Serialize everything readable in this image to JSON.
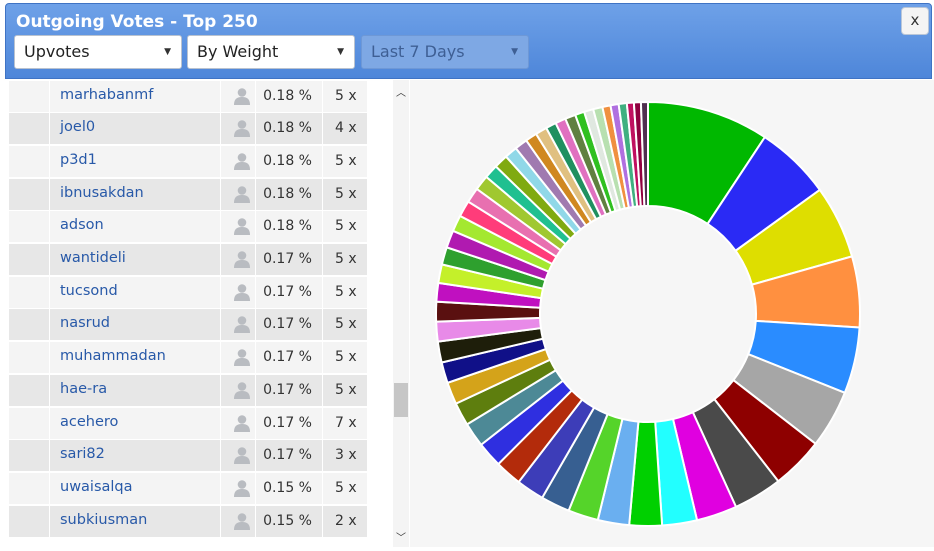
{
  "window": {
    "title": "Outgoing Votes - Top 250",
    "close_label": "x"
  },
  "filters": {
    "type": {
      "selected": "Upvotes"
    },
    "sort": {
      "selected": "By Weight"
    },
    "period": {
      "selected": "Last 7 Days",
      "disabled": true
    }
  },
  "icons": {
    "avatar": "user-silhouette-icon",
    "scroll_up": "chevron-up-icon",
    "scroll_down": "chevron-down-icon",
    "dropdown": "caret-down-icon"
  },
  "rows": [
    {
      "name": "marhabanmf",
      "pct": "0.18 %",
      "count": "5 x"
    },
    {
      "name": "joel0",
      "pct": "0.18 %",
      "count": "4 x"
    },
    {
      "name": "p3d1",
      "pct": "0.18 %",
      "count": "5 x"
    },
    {
      "name": "ibnusakdan",
      "pct": "0.18 %",
      "count": "5 x"
    },
    {
      "name": "adson",
      "pct": "0.18 %",
      "count": "5 x"
    },
    {
      "name": "wantideli",
      "pct": "0.17 %",
      "count": "5 x"
    },
    {
      "name": "tucsond",
      "pct": "0.17 %",
      "count": "5 x"
    },
    {
      "name": "nasrud",
      "pct": "0.17 %",
      "count": "5 x"
    },
    {
      "name": "muhammadan",
      "pct": "0.17 %",
      "count": "5 x"
    },
    {
      "name": "hae-ra",
      "pct": "0.17 %",
      "count": "5 x"
    },
    {
      "name": "acehero",
      "pct": "0.17 %",
      "count": "7 x"
    },
    {
      "name": "sari82",
      "pct": "0.17 %",
      "count": "3 x"
    },
    {
      "name": "uwaisalqa",
      "pct": "0.15 %",
      "count": "5 x"
    },
    {
      "name": "subkiusman",
      "pct": "0.15 %",
      "count": "2 x"
    }
  ],
  "chart_data": {
    "type": "pie",
    "donut": true,
    "legend": "none",
    "slices": [
      {
        "value": 10.5,
        "color": "#00b800"
      },
      {
        "value": 6.5,
        "color": "#2a2af5"
      },
      {
        "value": 6.3,
        "color": "#dede00"
      },
      {
        "value": 6.1,
        "color": "#ff9040"
      },
      {
        "value": 5.7,
        "color": "#2a8cff"
      },
      {
        "value": 5.0,
        "color": "#a6a6a6"
      },
      {
        "value": 4.5,
        "color": "#8e0000"
      },
      {
        "value": 4.2,
        "color": "#4a4a4a"
      },
      {
        "value": 3.5,
        "color": "#e000e0"
      },
      {
        "value": 3.0,
        "color": "#22ffff"
      },
      {
        "value": 2.8,
        "color": "#00d000"
      },
      {
        "value": 2.7,
        "color": "#6aaff0"
      },
      {
        "value": 2.6,
        "color": "#55d42a"
      },
      {
        "value": 2.5,
        "color": "#375f91"
      },
      {
        "value": 2.4,
        "color": "#3d3db8"
      },
      {
        "value": 2.3,
        "color": "#b32b0b"
      },
      {
        "value": 2.2,
        "color": "#2f2fe0"
      },
      {
        "value": 2.1,
        "color": "#4d8996"
      },
      {
        "value": 2.0,
        "color": "#5e7e0e"
      },
      {
        "value": 1.9,
        "color": "#d4a31a"
      },
      {
        "value": 1.8,
        "color": "#101088"
      },
      {
        "value": 1.8,
        "color": "#1e1e0a"
      },
      {
        "value": 1.7,
        "color": "#e88ae8"
      },
      {
        "value": 1.7,
        "color": "#5a1010"
      },
      {
        "value": 1.6,
        "color": "#c010c0"
      },
      {
        "value": 1.6,
        "color": "#c4f02a"
      },
      {
        "value": 1.5,
        "color": "#2ea02e"
      },
      {
        "value": 1.5,
        "color": "#b01ab0"
      },
      {
        "value": 1.4,
        "color": "#a4e830"
      },
      {
        "value": 1.4,
        "color": "#ff3c7a"
      },
      {
        "value": 1.3,
        "color": "#e870b0"
      },
      {
        "value": 1.3,
        "color": "#a0c830"
      },
      {
        "value": 1.2,
        "color": "#20c090"
      },
      {
        "value": 1.2,
        "color": "#80aa10"
      },
      {
        "value": 1.1,
        "color": "#90d8e8"
      },
      {
        "value": 1.1,
        "color": "#a07ab0"
      },
      {
        "value": 1.0,
        "color": "#d08820"
      },
      {
        "value": 1.0,
        "color": "#e0c080"
      },
      {
        "value": 0.9,
        "color": "#209060"
      },
      {
        "value": 0.9,
        "color": "#e070c0"
      },
      {
        "value": 0.9,
        "color": "#608040"
      },
      {
        "value": 0.8,
        "color": "#30c020"
      },
      {
        "value": 0.8,
        "color": "#e0e8e0"
      },
      {
        "value": 0.8,
        "color": "#b8e0b0"
      },
      {
        "value": 0.7,
        "color": "#f09040"
      },
      {
        "value": 0.7,
        "color": "#b070e0"
      },
      {
        "value": 0.7,
        "color": "#40b080"
      },
      {
        "value": 0.6,
        "color": "#c01060"
      },
      {
        "value": 0.6,
        "color": "#900040"
      },
      {
        "value": 0.6,
        "color": "#503050"
      }
    ]
  }
}
